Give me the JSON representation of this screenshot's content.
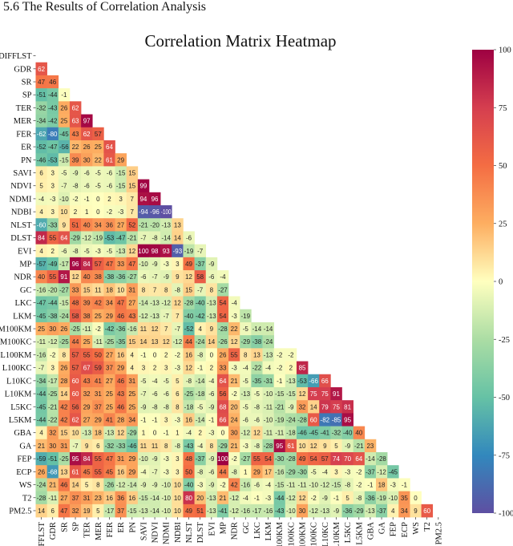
{
  "page": {
    "section_heading": "5.6    The Results of Correlation Analysis"
  },
  "chart_data": {
    "type": "heatmap",
    "title": "Correlation Matrix Heatmap",
    "xlabel": "",
    "ylabel": "",
    "mask": "upper-triangle",
    "colorscale": "Spectral (diverging, red = 100, pale yellow = 0, blue/purple = -100)",
    "colorbar": {
      "min": -100,
      "max": 100,
      "ticks": [
        100,
        75,
        50,
        25,
        0,
        -25,
        -50,
        -75,
        -100
      ]
    },
    "variables": [
      "DIFFLST",
      "GDR",
      "SR",
      "SP",
      "TER",
      "MER",
      "FER",
      "ER",
      "PN",
      "SAVI",
      "NDVI",
      "NDMI",
      "NDBI",
      "NLST",
      "DLST",
      "EVI",
      "MP",
      "NDR",
      "GC",
      "LKC",
      "LKM",
      "M100KM",
      "M100KC",
      "L100KM",
      "L100KC",
      "L10KC",
      "L10KM",
      "L5KC",
      "L5KM",
      "GBA",
      "GA",
      "FEP",
      "ECP",
      "WS",
      "T2",
      "PM2.5"
    ],
    "rows": [
      [],
      [
        62
      ],
      [
        47,
        46
      ],
      [
        -51,
        -44,
        -1
      ],
      [
        -32,
        -43,
        26,
        62
      ],
      [
        -34,
        -42,
        25,
        63,
        97
      ],
      [
        -62,
        -80,
        -45,
        43,
        62,
        57
      ],
      [
        -52,
        -47,
        -56,
        22,
        26,
        25,
        64
      ],
      [
        -46,
        -53,
        -15,
        39,
        30,
        22,
        61,
        29
      ],
      [
        6,
        3,
        -5,
        -9,
        -6,
        -5,
        -6,
        -15,
        15
      ],
      [
        5,
        3,
        -7,
        -8,
        -6,
        -5,
        -6,
        -15,
        15,
        99
      ],
      [
        -4,
        -3,
        -10,
        -2,
        -1,
        0,
        2,
        3,
        7,
        94,
        96
      ],
      [
        4,
        3,
        10,
        2,
        1,
        0,
        -2,
        -3,
        7,
        -94,
        -96,
        -100
      ],
      [
        -60,
        -33,
        9,
        51,
        40,
        34,
        36,
        27,
        52,
        -21,
        -20,
        -13,
        13
      ],
      [
        84,
        55,
        64,
        -29,
        -12,
        -19,
        -53,
        -47,
        -21,
        -7,
        -8,
        -14,
        14,
        -6
      ],
      [
        4,
        2,
        -6,
        -8,
        -5,
        -3,
        -5,
        -13,
        12,
        100,
        98,
        93,
        -93,
        -19,
        -7
      ],
      [
        -57,
        -49,
        -17,
        96,
        84,
        57,
        47,
        33,
        47,
        -10,
        -9,
        -3,
        3,
        49,
        -37,
        -9
      ],
      [
        40,
        55,
        91,
        12,
        40,
        38,
        -38,
        -36,
        -27,
        -6,
        -7,
        -9,
        9,
        12,
        58,
        -6,
        -4
      ],
      [
        -16,
        -20,
        -27,
        33,
        15,
        11,
        18,
        10,
        31,
        8,
        7,
        8,
        -8,
        15,
        -7,
        8,
        -27
      ],
      [
        -47,
        -44,
        -15,
        48,
        39,
        42,
        34,
        47,
        27,
        -14,
        -13,
        -12,
        12,
        -28,
        -40,
        -13,
        54,
        -4
      ],
      [
        -45,
        -38,
        -24,
        58,
        38,
        25,
        29,
        46,
        43,
        -12,
        -13,
        -7,
        7,
        -40,
        -42,
        -13,
        54,
        -3,
        -19
      ],
      [
        25,
        30,
        26,
        -25,
        -11,
        -2,
        -42,
        -36,
        -16,
        11,
        12,
        7,
        -7,
        -52,
        4,
        9,
        -28,
        22,
        -5,
        -14,
        -14
      ],
      [
        -11,
        -12,
        -25,
        44,
        25,
        -11,
        -25,
        -35,
        15,
        14,
        13,
        12,
        -12,
        44,
        -24,
        14,
        -26,
        12,
        -29,
        -38,
        -24
      ],
      [
        -16,
        -2,
        8,
        57,
        55,
        50,
        27,
        16,
        4,
        -1,
        0,
        2,
        -2,
        16,
        -8,
        0,
        26,
        55,
        8,
        13,
        -13,
        -2,
        -2
      ],
      [
        -7,
        3,
        26,
        57,
        67,
        59,
        37,
        29,
        4,
        3,
        2,
        3,
        -3,
        12,
        -1,
        2,
        33,
        -3,
        -4,
        -22,
        -4,
        -2,
        2,
        85
      ],
      [
        -34,
        -17,
        28,
        60,
        43,
        41,
        27,
        46,
        31,
        -5,
        -4,
        -5,
        5,
        -8,
        -14,
        -4,
        64,
        21,
        -5,
        -35,
        -31,
        -1,
        -13,
        -53,
        -66,
        66
      ],
      [
        -44,
        -25,
        14,
        60,
        32,
        31,
        25,
        43,
        25,
        -7,
        -6,
        -6,
        6,
        -25,
        -18,
        -6,
        56,
        -2,
        -13,
        -5,
        -10,
        -15,
        -15,
        12,
        75,
        75,
        91
      ],
      [
        -45,
        -21,
        42,
        56,
        29,
        37,
        25,
        46,
        25,
        -9,
        -8,
        -8,
        8,
        -18,
        -5,
        -9,
        68,
        20,
        -5,
        -8,
        -11,
        -21,
        -9,
        32,
        14,
        79,
        75,
        81
      ],
      [
        -44,
        -22,
        42,
        62,
        27,
        29,
        41,
        28,
        34,
        -1,
        -1,
        3,
        -3,
        16,
        -14,
        -1,
        66,
        24,
        -6,
        -6,
        -10,
        -19,
        -24,
        -28,
        60,
        -82,
        -85,
        95
      ],
      [
        4,
        32,
        15,
        10,
        -13,
        18,
        -13,
        12,
        -29,
        1,
        0,
        -1,
        1,
        -4,
        2,
        -3,
        0,
        30,
        -12,
        12,
        -11,
        -11,
        -18,
        -46,
        -45,
        -41,
        -32,
        -40,
        40
      ],
      [
        21,
        30,
        31,
        -7,
        9,
        6,
        -32,
        -33,
        -46,
        11,
        11,
        8,
        -8,
        -43,
        -4,
        8,
        -29,
        21,
        -3,
        -8,
        -28,
        95,
        61,
        10,
        12,
        9,
        5,
        -9,
        -21,
        23
      ],
      [
        -59,
        -51,
        -25,
        95,
        84,
        55,
        47,
        31,
        29,
        -10,
        -9,
        -3,
        3,
        48,
        -37,
        -9,
        100,
        -2,
        -27,
        55,
        54,
        -30,
        -28,
        49,
        54,
        57,
        74,
        70,
        64,
        -14,
        -28
      ],
      [
        26,
        -68,
        13,
        61,
        45,
        55,
        45,
        16,
        29,
        -4,
        -7,
        -3,
        3,
        50,
        -8,
        -6,
        44,
        -8,
        1,
        29,
        17,
        -16,
        -29,
        -30,
        -5,
        -4,
        3,
        -3,
        -2,
        -37,
        -12,
        -45
      ],
      [
        -24,
        21,
        46,
        14,
        5,
        8,
        -26,
        -12,
        -14,
        -9,
        -9,
        -10,
        10,
        -40,
        -3,
        -9,
        -2,
        42,
        -16,
        -6,
        -4,
        -15,
        -11,
        -11,
        -10,
        -12,
        -15,
        -8,
        -2,
        -1,
        18,
        -3,
        -1
      ],
      [
        -28,
        -11,
        27,
        37,
        31,
        23,
        16,
        36,
        16,
        -15,
        -14,
        -10,
        10,
        80,
        20,
        -13,
        21,
        -12,
        -4,
        -1,
        -3,
        -44,
        -12,
        12,
        -2,
        -9,
        -1,
        5,
        -8,
        -36,
        -19,
        -10,
        35,
        0
      ],
      [
        14,
        6,
        47,
        32,
        19,
        5,
        -17,
        37,
        -15,
        -13,
        -14,
        -10,
        10,
        49,
        51,
        -13,
        -41,
        -12,
        -16,
        -17,
        -16,
        -43,
        -10,
        30,
        -12,
        -13,
        -9,
        -36,
        -29,
        -13,
        -37,
        4,
        34,
        9,
        60
      ]
    ]
  }
}
